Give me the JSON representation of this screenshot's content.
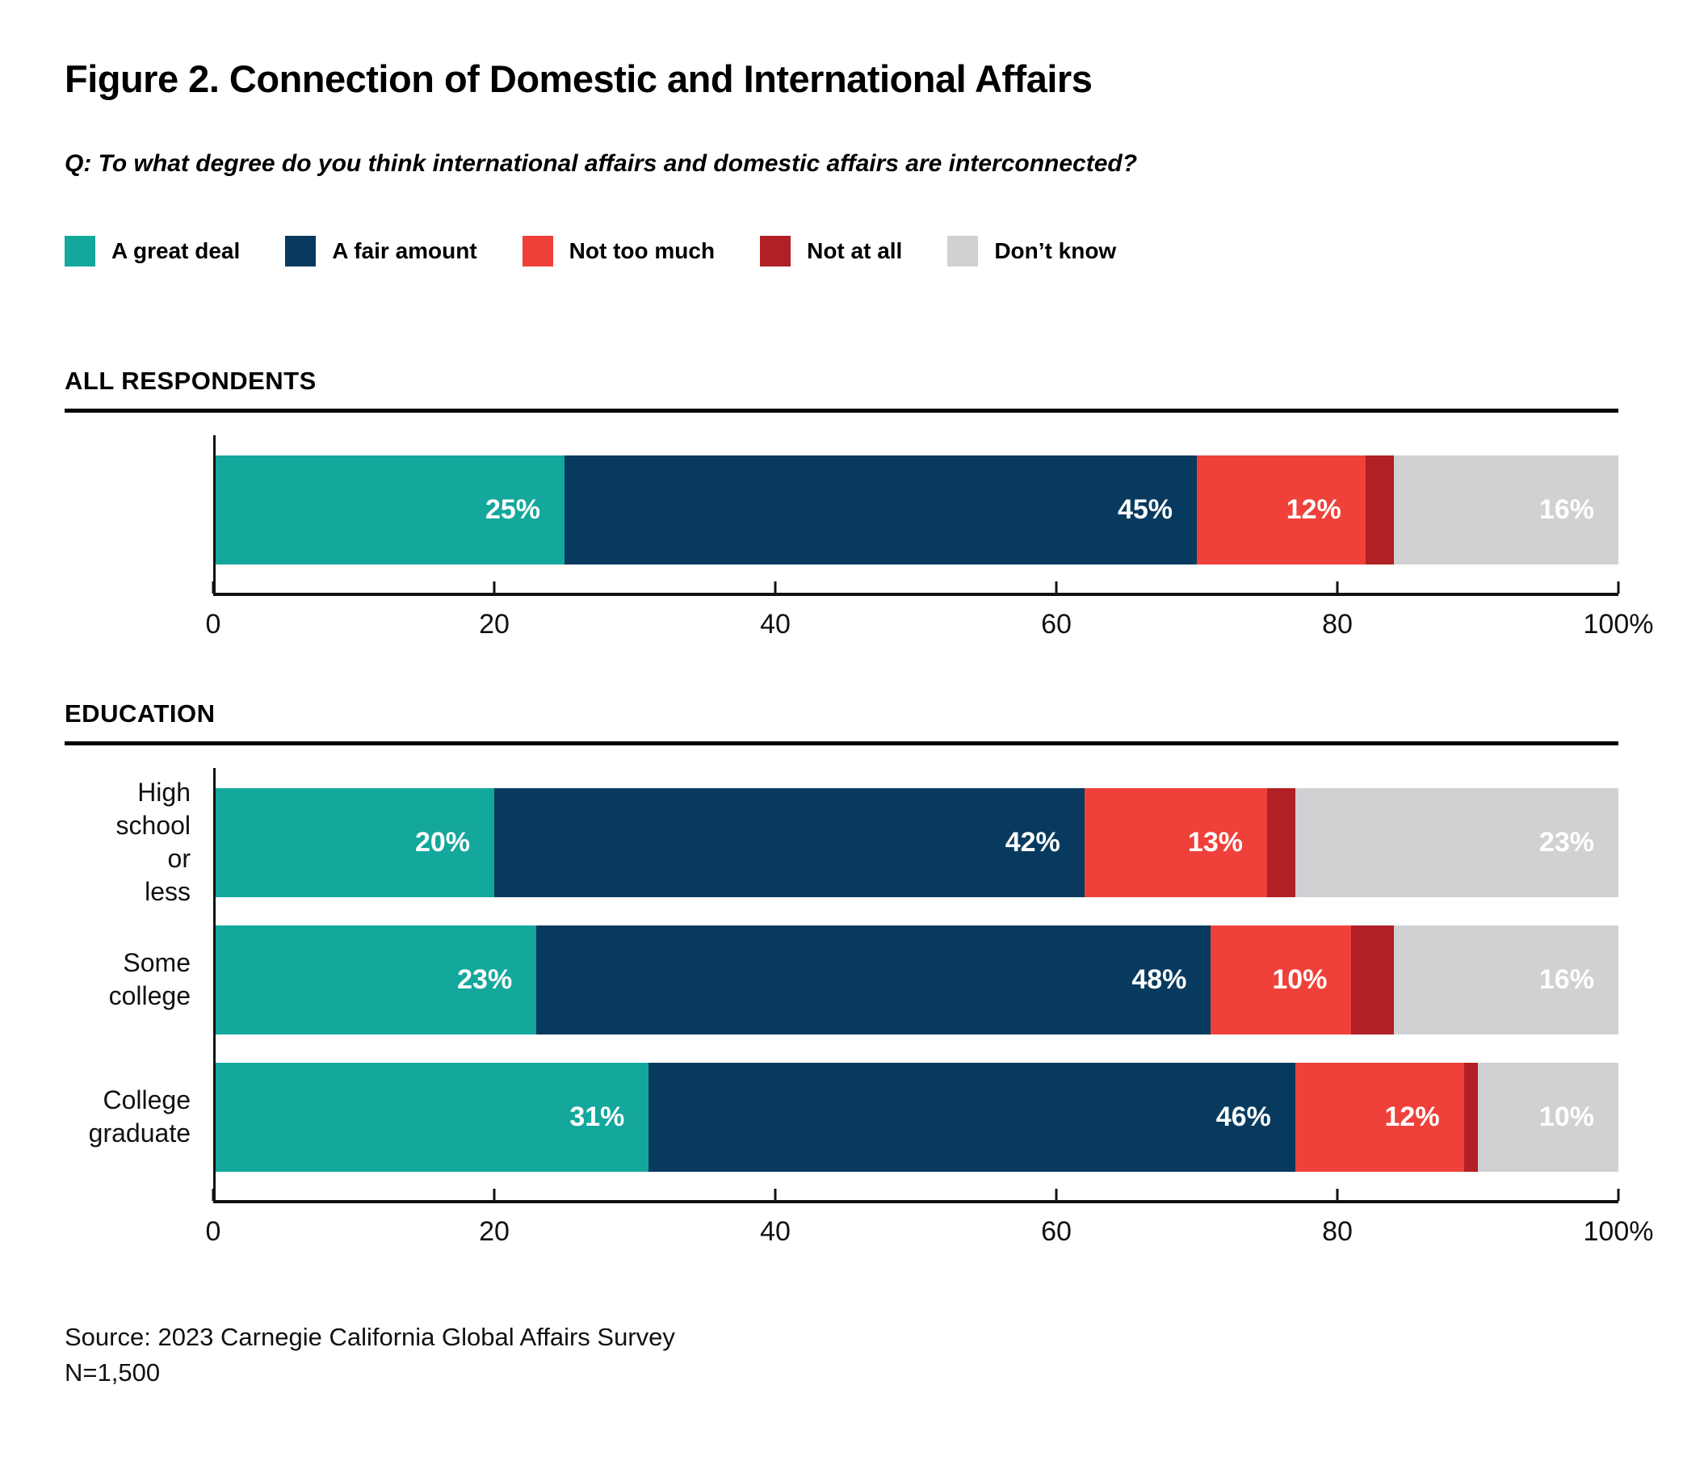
{
  "title": "Figure 2. Connection of Domestic and International Affairs",
  "question": "Q: To what degree do you think international affairs and domestic affairs are interconnected?",
  "legend": [
    {
      "label": "A great deal",
      "color": "#14A79C"
    },
    {
      "label": "A fair amount",
      "color": "#083A5F"
    },
    {
      "label": "Not too much",
      "color": "#EF413A"
    },
    {
      "label": "Not at all",
      "color": "#B12025"
    },
    {
      "label": "Don’t know",
      "color": "#D1D1D3"
    }
  ],
  "source_line1": "Source: 2023 Carnegie California Global Affairs Survey",
  "source_line2": "N=1,500",
  "chart_data": [
    {
      "type": "bar",
      "stacked": true,
      "orientation": "horizontal",
      "title": "ALL RESPONDENTS",
      "categories": [
        ""
      ],
      "series": [
        {
          "name": "A great deal",
          "color": "#14A79C",
          "values": [
            25
          ]
        },
        {
          "name": "A fair amount",
          "color": "#083A5F",
          "values": [
            45
          ]
        },
        {
          "name": "Not too much",
          "color": "#EF413A",
          "values": [
            12
          ]
        },
        {
          "name": "Not at all",
          "color": "#B12025",
          "values": [
            2
          ]
        },
        {
          "name": "Don’t know",
          "color": "#D1D1D3",
          "values": [
            16
          ]
        }
      ],
      "data_labels": [
        [
          "25%",
          "45%",
          "12%",
          "",
          "16%"
        ]
      ],
      "xlim": [
        0,
        100
      ],
      "xticks": [
        "0",
        "20",
        "40",
        "60",
        "80",
        "100%"
      ],
      "grid": false,
      "legend_position": "top"
    },
    {
      "type": "bar",
      "stacked": true,
      "orientation": "horizontal",
      "title": "EDUCATION",
      "categories": [
        "High school\nor less",
        "Some college",
        "College\ngraduate"
      ],
      "series": [
        {
          "name": "A great deal",
          "color": "#14A79C",
          "values": [
            20,
            23,
            31
          ]
        },
        {
          "name": "A fair amount",
          "color": "#083A5F",
          "values": [
            42,
            48,
            46
          ]
        },
        {
          "name": "Not too much",
          "color": "#EF413A",
          "values": [
            13,
            10,
            12
          ]
        },
        {
          "name": "Not at all",
          "color": "#B12025",
          "values": [
            2,
            3,
            1
          ]
        },
        {
          "name": "Don’t know",
          "color": "#D1D1D3",
          "values": [
            23,
            16,
            10
          ]
        }
      ],
      "data_labels": [
        [
          "20%",
          "42%",
          "13%",
          "",
          "23%"
        ],
        [
          "23%",
          "48%",
          "10%",
          "",
          "16%"
        ],
        [
          "31%",
          "46%",
          "12%",
          "",
          "10%"
        ]
      ],
      "xlim": [
        0,
        100
      ],
      "xticks": [
        "0",
        "20",
        "40",
        "60",
        "80",
        "100%"
      ],
      "grid": false,
      "legend_position": "top"
    }
  ]
}
